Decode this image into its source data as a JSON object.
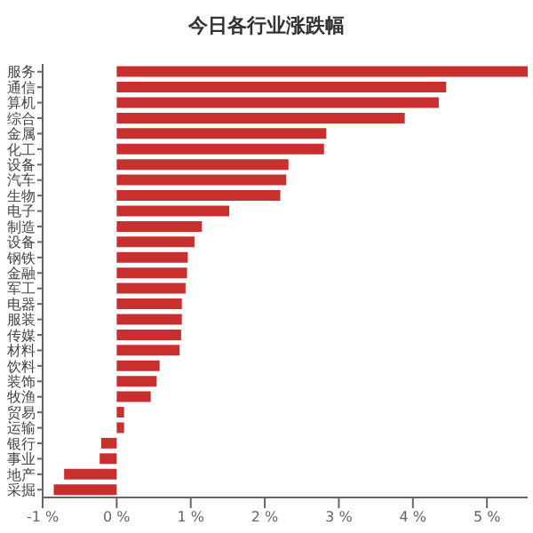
{
  "chart_data": {
    "type": "bar",
    "orientation": "horizontal",
    "title": "今日各行业涨跌幅",
    "categories": [
      "服务",
      "通信",
      "算机",
      "综合",
      "金属",
      "化工",
      "设备",
      "汽车",
      "生物",
      "电子",
      "制造",
      "设备",
      "钢铁",
      "金融",
      "军工",
      "电器",
      "服装",
      "传媒",
      "材料",
      "饮料",
      "装饰",
      "牧渔",
      "贸易",
      "运输",
      "银行",
      "事业",
      "地产",
      "采掘"
    ],
    "values": [
      5.55,
      4.45,
      4.35,
      3.89,
      2.83,
      2.8,
      2.32,
      2.29,
      2.21,
      1.52,
      1.15,
      1.05,
      0.96,
      0.95,
      0.93,
      0.88,
      0.88,
      0.87,
      0.85,
      0.58,
      0.54,
      0.46,
      0.1,
      0.1,
      -0.21,
      -0.23,
      -0.71,
      -0.85
    ],
    "color": "#c8302f",
    "xlim": [
      -1,
      5.55
    ],
    "xticks": [
      {
        "value": -1,
        "label": "-1 %"
      },
      {
        "value": 0,
        "label": "0 %"
      },
      {
        "value": 1,
        "label": "1 %"
      },
      {
        "value": 2,
        "label": "2 %"
      },
      {
        "value": 3,
        "label": "3 %"
      },
      {
        "value": 4,
        "label": "4 %"
      },
      {
        "value": 5,
        "label": "5 %"
      }
    ],
    "grid": false
  }
}
